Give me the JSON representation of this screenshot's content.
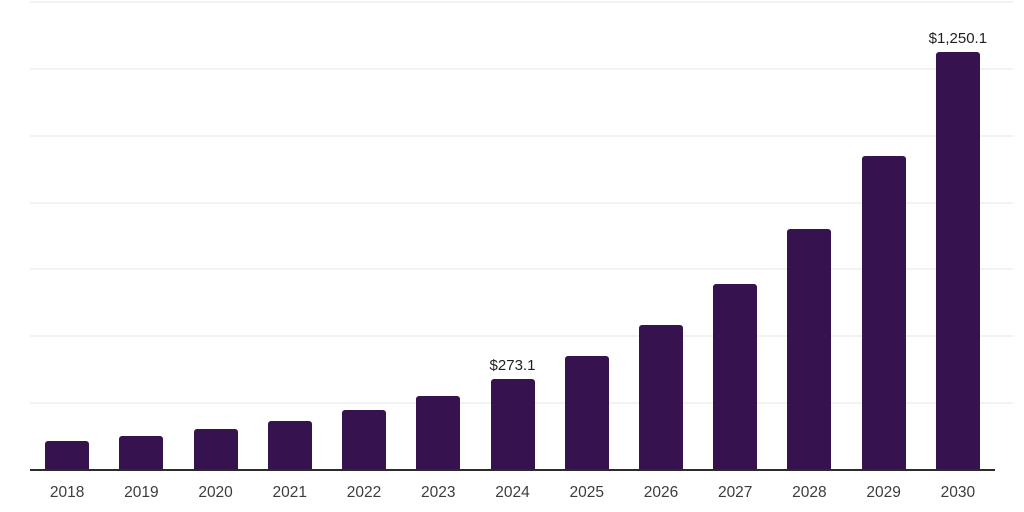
{
  "chart_data": {
    "type": "bar",
    "title": "",
    "xlabel": "",
    "ylabel": "",
    "categories": [
      "2018",
      "2019",
      "2020",
      "2021",
      "2022",
      "2023",
      "2024",
      "2025",
      "2026",
      "2027",
      "2028",
      "2029",
      "2030"
    ],
    "values": [
      87,
      103,
      123,
      148,
      180,
      221,
      273.1,
      341,
      435,
      556,
      720,
      940,
      1250.1
    ],
    "value_labels": {
      "2024": "$273.1",
      "2030": "$1,250.1"
    },
    "ylim": [
      0,
      1400
    ],
    "grid_step": 200,
    "grid": "horizontal",
    "legend": "none",
    "y_axis_ticks_visible": false
  },
  "colors": {
    "background": "#FFFFFF",
    "bar": "#36134F",
    "grid": "#F2F2F4",
    "axis": "#2B2B2B",
    "value_label_text": "#1F1F1F",
    "tick_text": "#3C3C3C"
  }
}
